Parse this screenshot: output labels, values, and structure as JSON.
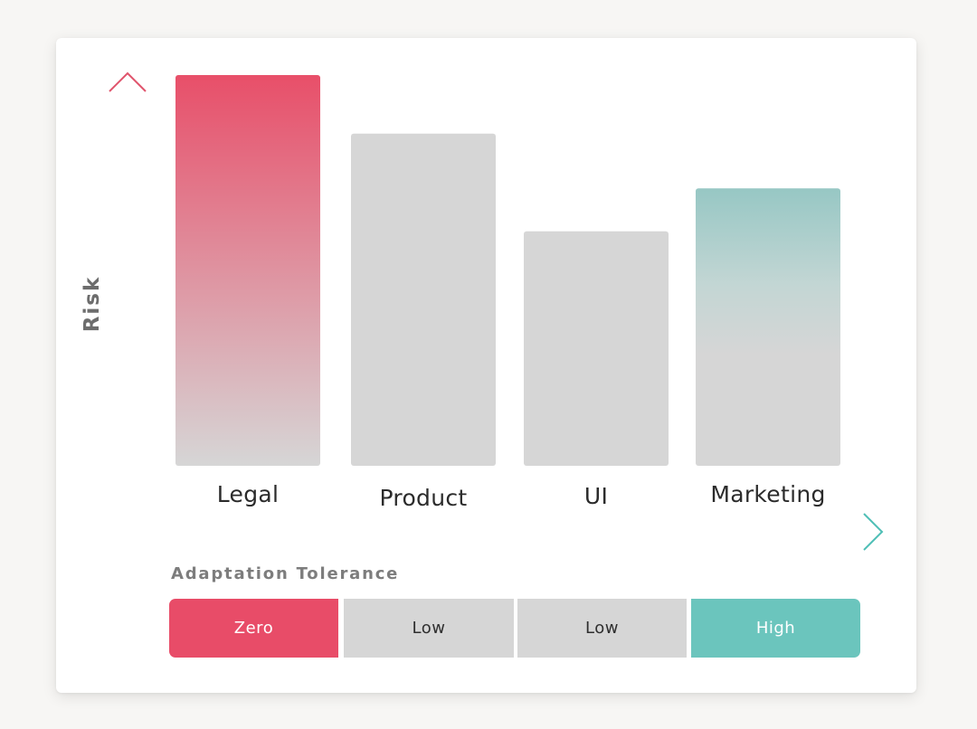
{
  "chart_data": {
    "type": "bar",
    "ylabel": "Risk",
    "categories": [
      "Legal",
      "Product",
      "UI",
      "Marketing"
    ],
    "values": [
      100,
      85,
      60,
      71
    ],
    "bar_colors": [
      "#e84f69",
      "#d6d6d6",
      "#d6d6d6",
      "#8fc4c1"
    ],
    "ylim": [
      0,
      100
    ],
    "grid": false
  },
  "tolerance": {
    "title": "Adaptation Tolerance",
    "levels": [
      "Zero",
      "Low",
      "Low",
      "High"
    ],
    "colors": [
      "#e84c68",
      "#d6d6d6",
      "#d6d6d6",
      "#6bc5bd"
    ]
  },
  "colors": {
    "risk_axis": "#e0546c",
    "tolerance_axis": "#4fbfb6",
    "neutral": "#d6d6d6"
  }
}
